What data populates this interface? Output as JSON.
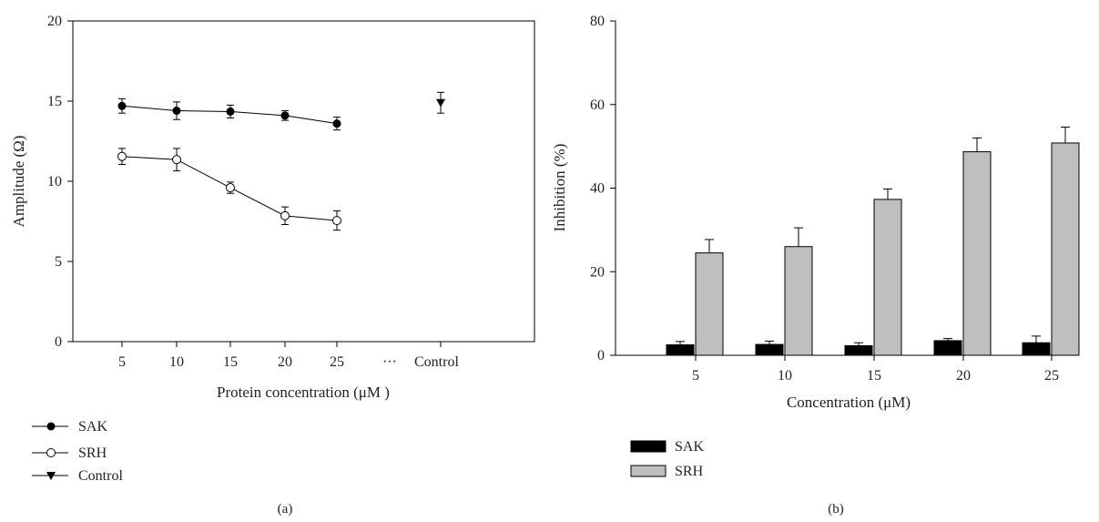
{
  "chart_data": [
    {
      "panel_label": "(a)",
      "type": "line",
      "xlabel": "Protein concentration (μM )",
      "ylabel": "Amplitude (Ω)",
      "ylim": [
        0,
        20
      ],
      "yticks": [
        0,
        5,
        10,
        15,
        20
      ],
      "categories": [
        "5",
        "10",
        "15",
        "20",
        "25",
        "Control"
      ],
      "break_label": "···",
      "legend_position": "bottom-left",
      "series": [
        {
          "name": "SAK",
          "marker": "filled-circle",
          "x": [
            5,
            10,
            15,
            20,
            25
          ],
          "values": [
            14.7,
            14.4,
            14.35,
            14.1,
            13.6
          ],
          "errors": [
            0.45,
            0.55,
            0.4,
            0.3,
            0.4
          ]
        },
        {
          "name": "SRH",
          "marker": "open-circle",
          "x": [
            5,
            10,
            15,
            20,
            25
          ],
          "values": [
            11.55,
            11.35,
            9.6,
            7.85,
            7.55
          ],
          "errors": [
            0.5,
            0.7,
            0.35,
            0.55,
            0.6
          ]
        },
        {
          "name": "Control",
          "marker": "filled-triangle-down",
          "x": [
            "Control"
          ],
          "values": [
            14.9
          ],
          "errors": [
            0.65
          ]
        }
      ]
    },
    {
      "panel_label": "(b)",
      "type": "bar",
      "xlabel": "Concentration (μM)",
      "ylabel": "Inhibition (%)",
      "ylim": [
        0,
        80
      ],
      "yticks": [
        0,
        20,
        40,
        60,
        80
      ],
      "categories": [
        "5",
        "10",
        "15",
        "20",
        "25"
      ],
      "legend_position": "bottom-left",
      "series": [
        {
          "name": "SAK",
          "color": "#000000",
          "values": [
            2.5,
            2.6,
            2.3,
            3.5,
            3.0
          ],
          "errors": [
            0.8,
            0.8,
            0.7,
            0.5,
            1.6
          ]
        },
        {
          "name": "SRH",
          "color": "#bfbfbf",
          "values": [
            24.5,
            26.0,
            37.3,
            48.7,
            50.8
          ],
          "errors": [
            3.2,
            4.5,
            2.5,
            3.3,
            3.8
          ]
        }
      ]
    }
  ]
}
